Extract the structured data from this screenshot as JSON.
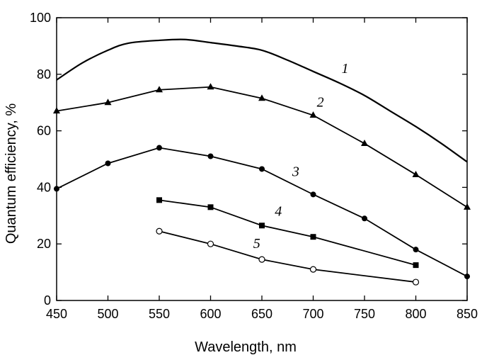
{
  "chart_data": {
    "type": "line",
    "title": "",
    "xlabel": "Wavelength,  nm",
    "ylabel": "Quantum efficiency,  %",
    "xlim": [
      450,
      850
    ],
    "ylim": [
      0,
      100
    ],
    "xticks": [
      450,
      500,
      550,
      600,
      650,
      700,
      750,
      800,
      850
    ],
    "yticks": [
      0,
      20,
      40,
      60,
      80,
      100
    ],
    "grid": false,
    "legend": "inline labels",
    "series": [
      {
        "name": "1",
        "marker": "none",
        "x": [
          450,
          475,
          500,
          520,
          550,
          575,
          600,
          625,
          650,
          675,
          700,
          725,
          750,
          775,
          800,
          825,
          850
        ],
        "y": [
          78,
          84,
          88.5,
          91,
          92,
          92.3,
          91.2,
          90,
          88.5,
          85,
          81,
          77,
          72.5,
          67,
          61.5,
          55.5,
          49
        ]
      },
      {
        "name": "2",
        "marker": "triangle",
        "x": [
          450,
          500,
          550,
          600,
          650,
          700,
          750,
          800,
          850
        ],
        "y": [
          67,
          70,
          74.5,
          75.5,
          71.5,
          65.5,
          55.5,
          44.5,
          33
        ]
      },
      {
        "name": "3",
        "marker": "filled-circle",
        "x": [
          450,
          500,
          550,
          600,
          650,
          700,
          750,
          800,
          850
        ],
        "y": [
          39.5,
          48.5,
          54,
          51,
          46.5,
          37.5,
          29,
          18,
          8.5
        ]
      },
      {
        "name": "4",
        "marker": "square",
        "x": [
          550,
          600,
          650,
          700,
          800
        ],
        "y": [
          35.5,
          33,
          26.5,
          22.5,
          12.5
        ]
      },
      {
        "name": "5",
        "marker": "open-circle",
        "x": [
          550,
          600,
          650,
          700,
          800
        ],
        "y": [
          24.5,
          20,
          14.5,
          11,
          6.5
        ]
      }
    ],
    "series_label_positions": [
      {
        "name": "1",
        "x": 731,
        "y": 80.5
      },
      {
        "name": "2",
        "x": 707,
        "y": 68.5
      },
      {
        "name": "3",
        "x": 683,
        "y": 44
      },
      {
        "name": "4",
        "x": 666,
        "y": 30
      },
      {
        "name": "5",
        "x": 645,
        "y": 18.5
      }
    ]
  }
}
